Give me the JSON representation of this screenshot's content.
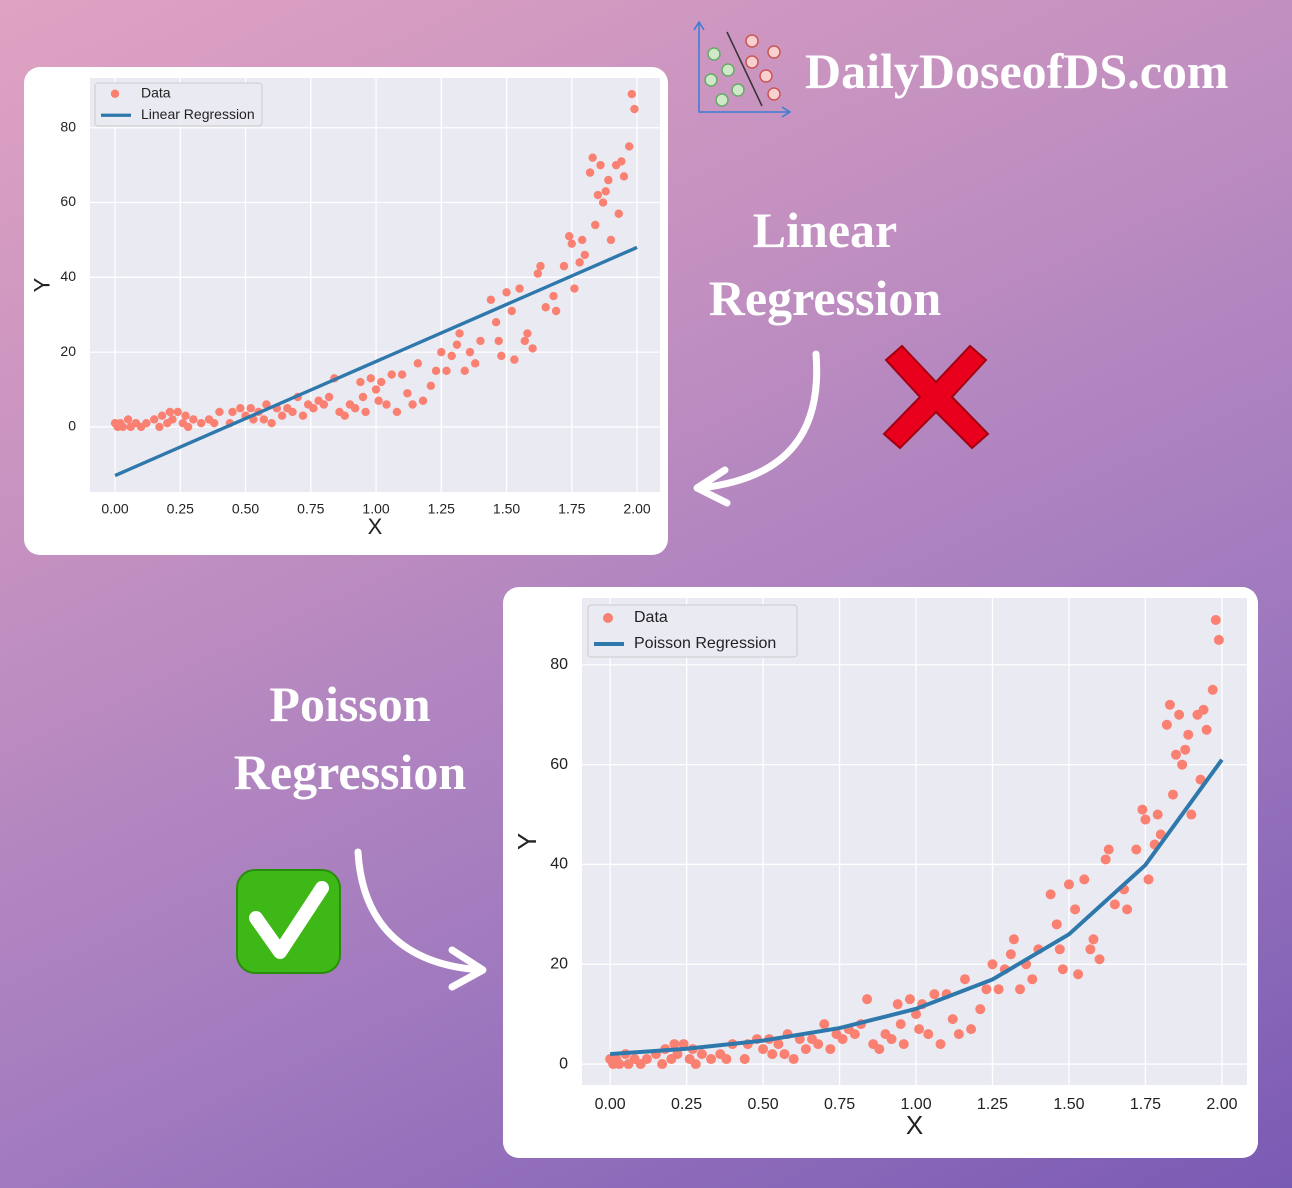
{
  "brand": "DailyDoseofDS.com",
  "captions": [
    "Linear Regression",
    "Poisson Regression"
  ],
  "chart_data": [
    {
      "type": "scatter",
      "xlabel": "X",
      "ylabel": "Y",
      "grid": true,
      "legend": "upper left",
      "xlim": [
        -0.096,
        2.088
      ],
      "ylim": [
        -17.4,
        93.3
      ],
      "xticks": [
        {
          "value": 0,
          "label": "0.00"
        },
        {
          "value": 0.25,
          "label": "0.25"
        },
        {
          "value": 0.5,
          "label": "0.50"
        },
        {
          "value": 0.75,
          "label": "0.75"
        },
        {
          "value": 1,
          "label": "1.00"
        },
        {
          "value": 1.25,
          "label": "1.25"
        },
        {
          "value": 1.5,
          "label": "1.50"
        },
        {
          "value": 1.75,
          "label": "1.75"
        },
        {
          "value": 2,
          "label": "2.00"
        }
      ],
      "yticks": [
        0,
        20,
        40,
        60,
        80
      ],
      "series": [
        {
          "name": "Data",
          "type": "scatter",
          "color": "#fa8072",
          "x": [
            0,
            0.01,
            0.02,
            0.03,
            0.05,
            0.06,
            0.08,
            0.1,
            0.12,
            0.15,
            0.17,
            0.18,
            0.2,
            0.21,
            0.22,
            0.24,
            0.26,
            0.27,
            0.28,
            0.3,
            0.33,
            0.36,
            0.38,
            0.4,
            0.44,
            0.45,
            0.48,
            0.5,
            0.52,
            0.53,
            0.55,
            0.57,
            0.58,
            0.6,
            0.62,
            0.64,
            0.66,
            0.68,
            0.7,
            0.72,
            0.74,
            0.76,
            0.78,
            0.8,
            0.82,
            0.84,
            0.86,
            0.88,
            0.9,
            0.92,
            0.94,
            0.95,
            0.96,
            0.98,
            1,
            1.01,
            1.02,
            1.04,
            1.06,
            1.08,
            1.1,
            1.12,
            1.14,
            1.16,
            1.18,
            1.21,
            1.23,
            1.25,
            1.27,
            1.29,
            1.31,
            1.32,
            1.34,
            1.36,
            1.38,
            1.4,
            1.44,
            1.46,
            1.47,
            1.48,
            1.5,
            1.52,
            1.53,
            1.55,
            1.57,
            1.58,
            1.6,
            1.62,
            1.63,
            1.65,
            1.68,
            1.69,
            1.72,
            1.74,
            1.75,
            1.76,
            1.78,
            1.79,
            1.8,
            1.82,
            1.83,
            1.84,
            1.85,
            1.86,
            1.87,
            1.88,
            1.89,
            1.9,
            1.92,
            1.93,
            1.94,
            1.95,
            1.97,
            1.98,
            1.99
          ],
          "values": [
            1,
            0,
            1,
            0,
            2,
            0,
            1,
            0,
            1,
            2,
            0,
            3,
            1,
            4,
            2,
            4,
            1,
            3,
            0,
            2,
            1,
            2,
            1,
            4,
            1,
            4,
            5,
            3,
            5,
            2,
            4,
            2,
            6,
            1,
            5,
            3,
            5,
            4,
            8,
            3,
            6,
            5,
            7,
            6,
            8,
            13,
            4,
            3,
            6,
            5,
            12,
            8,
            4,
            13,
            10,
            7,
            12,
            6,
            14,
            4,
            14,
            9,
            6,
            17,
            7,
            11,
            15,
            20,
            15,
            19,
            22,
            25,
            15,
            20,
            17,
            23,
            34,
            28,
            23,
            19,
            36,
            31,
            18,
            37,
            23,
            25,
            21,
            41,
            43,
            32,
            35,
            31,
            43,
            51,
            49,
            37,
            44,
            50,
            46,
            68,
            72,
            54,
            62,
            70,
            60,
            63,
            66,
            50,
            70,
            57,
            71,
            67,
            75,
            89,
            85
          ]
        },
        {
          "name": "Linear Regression",
          "type": "line",
          "color": "#2e78ac",
          "x": [
            0,
            2
          ],
          "values": [
            -13,
            48
          ]
        }
      ]
    },
    {
      "type": "scatter",
      "xlabel": "X",
      "ylabel": "Y",
      "grid": true,
      "legend": "upper left",
      "xlim": [
        -0.092,
        2.082
      ],
      "ylim": [
        -4.2,
        93.4
      ],
      "xticks": [
        {
          "value": 0,
          "label": "0.00"
        },
        {
          "value": 0.25,
          "label": "0.25"
        },
        {
          "value": 0.5,
          "label": "0.50"
        },
        {
          "value": 0.75,
          "label": "0.75"
        },
        {
          "value": 1,
          "label": "1.00"
        },
        {
          "value": 1.25,
          "label": "1.25"
        },
        {
          "value": 1.5,
          "label": "1.50"
        },
        {
          "value": 1.75,
          "label": "1.75"
        },
        {
          "value": 2,
          "label": "2.00"
        }
      ],
      "yticks": [
        0,
        20,
        40,
        60,
        80
      ],
      "series": [
        {
          "name": "Data",
          "type": "scatter",
          "color": "#fa8072",
          "x": [
            0,
            0.01,
            0.02,
            0.03,
            0.05,
            0.06,
            0.08,
            0.1,
            0.12,
            0.15,
            0.17,
            0.18,
            0.2,
            0.21,
            0.22,
            0.24,
            0.26,
            0.27,
            0.28,
            0.3,
            0.33,
            0.36,
            0.38,
            0.4,
            0.44,
            0.45,
            0.48,
            0.5,
            0.52,
            0.53,
            0.55,
            0.57,
            0.58,
            0.6,
            0.62,
            0.64,
            0.66,
            0.68,
            0.7,
            0.72,
            0.74,
            0.76,
            0.78,
            0.8,
            0.82,
            0.84,
            0.86,
            0.88,
            0.9,
            0.92,
            0.94,
            0.95,
            0.96,
            0.98,
            1,
            1.01,
            1.02,
            1.04,
            1.06,
            1.08,
            1.1,
            1.12,
            1.14,
            1.16,
            1.18,
            1.21,
            1.23,
            1.25,
            1.27,
            1.29,
            1.31,
            1.32,
            1.34,
            1.36,
            1.38,
            1.4,
            1.44,
            1.46,
            1.47,
            1.48,
            1.5,
            1.52,
            1.53,
            1.55,
            1.57,
            1.58,
            1.6,
            1.62,
            1.63,
            1.65,
            1.68,
            1.69,
            1.72,
            1.74,
            1.75,
            1.76,
            1.78,
            1.79,
            1.8,
            1.82,
            1.83,
            1.84,
            1.85,
            1.86,
            1.87,
            1.88,
            1.89,
            1.9,
            1.92,
            1.93,
            1.94,
            1.95,
            1.97,
            1.98,
            1.99
          ],
          "values": [
            1,
            0,
            1,
            0,
            2,
            0,
            1,
            0,
            1,
            2,
            0,
            3,
            1,
            4,
            2,
            4,
            1,
            3,
            0,
            2,
            1,
            2,
            1,
            4,
            1,
            4,
            5,
            3,
            5,
            2,
            4,
            2,
            6,
            1,
            5,
            3,
            5,
            4,
            8,
            3,
            6,
            5,
            7,
            6,
            8,
            13,
            4,
            3,
            6,
            5,
            12,
            8,
            4,
            13,
            10,
            7,
            12,
            6,
            14,
            4,
            14,
            9,
            6,
            17,
            7,
            11,
            15,
            20,
            15,
            19,
            22,
            25,
            15,
            20,
            17,
            23,
            34,
            28,
            23,
            19,
            36,
            31,
            18,
            37,
            23,
            25,
            21,
            41,
            43,
            32,
            35,
            31,
            43,
            51,
            49,
            37,
            44,
            50,
            46,
            68,
            72,
            54,
            62,
            70,
            60,
            63,
            66,
            50,
            70,
            57,
            71,
            67,
            75,
            89,
            85
          ]
        },
        {
          "name": "Poisson Regression",
          "type": "line",
          "color": "#2e78ac",
          "x": [
            0,
            0.25,
            0.5,
            0.75,
            1,
            1.25,
            1.5,
            1.75,
            2
          ],
          "values": [
            2.0,
            3.07,
            4.7,
            7.21,
            11.06,
            16.95,
            26.0,
            39.9,
            61.0
          ]
        }
      ]
    }
  ]
}
